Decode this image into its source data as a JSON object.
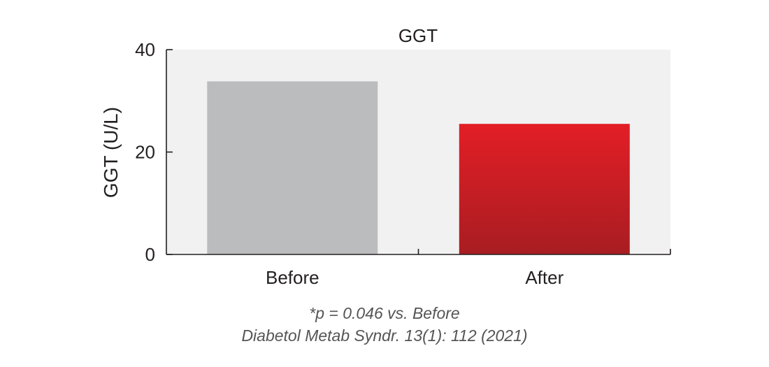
{
  "chart_data": {
    "type": "bar",
    "title": "GGT",
    "ylabel": "GGT (U/L)",
    "xlabel": "",
    "categories": [
      "Before",
      "After"
    ],
    "values": [
      33.8,
      25.5
    ],
    "ylim": [
      0,
      40
    ],
    "yticks": [
      0,
      20,
      40
    ],
    "grid": false,
    "legend": "none",
    "colors": {
      "before": "#bbbcbd",
      "after_top": "#e31e26",
      "after_bottom": "#a81d22",
      "plot_background": "#f1f1f1",
      "text": "#231f20",
      "note": "#555555"
    }
  },
  "notes": {
    "significance": "*p = 0.046 vs. Before",
    "citation": "Diabetol Metab Syndr. 13(1): 112 (2021)"
  }
}
